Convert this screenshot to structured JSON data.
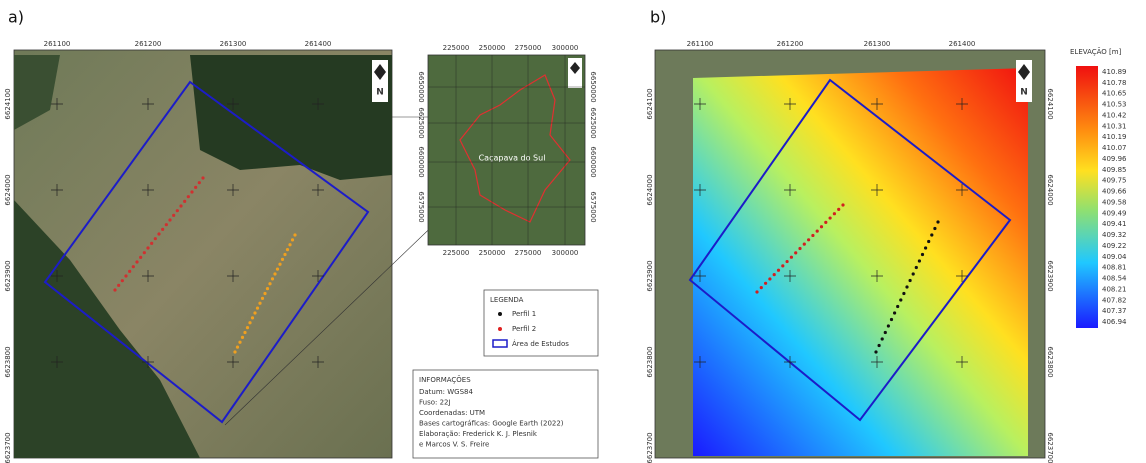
{
  "panel_a": {
    "label": "a)",
    "north": "N",
    "x_ticks": [
      "261100",
      "261200",
      "261300",
      "261400"
    ],
    "y_ticks": [
      "6624100",
      "6624000",
      "6623900",
      "6623800",
      "6623700"
    ],
    "inset": {
      "x_ticks": [
        "225000",
        "250000",
        "275000",
        "300000"
      ],
      "y_ticks": [
        "6650000",
        "6625000",
        "6600000",
        "6575000"
      ],
      "place": "Caçapava do Sul"
    },
    "legend": {
      "title": "LEGENDA",
      "items": [
        "Perfil 1",
        "Perfil 2",
        "Área de Estudos"
      ]
    },
    "info": {
      "title": "INFORMAÇÕES",
      "lines": [
        "Datum: WGS84",
        "Fuso: 22J",
        "Coordenadas: UTM",
        "Bases cartográficas: Google Earth (2022)",
        "Elaboração: Frederick K. J. Plesnik",
        "e Marcos V. S. Freire"
      ]
    }
  },
  "panel_b": {
    "label": "b)",
    "north": "N",
    "x_ticks": [
      "261100",
      "261200",
      "261300",
      "261400"
    ],
    "y_ticks": [
      "6624100",
      "6624000",
      "6623900",
      "6623800",
      "6623700"
    ],
    "colorbar": {
      "title": "ELEVAÇÃO [m]",
      "labels": [
        "410.89",
        "410.78",
        "410.65",
        "410.53",
        "410.42",
        "410.31",
        "410.19",
        "410.07",
        "409.96",
        "409.85",
        "409.75",
        "409.66",
        "409.58",
        "409.49",
        "409.41",
        "409.32",
        "409.22",
        "409.04",
        "408.81",
        "408.54",
        "408.21",
        "407.82",
        "407.37",
        "406.94"
      ]
    }
  }
}
